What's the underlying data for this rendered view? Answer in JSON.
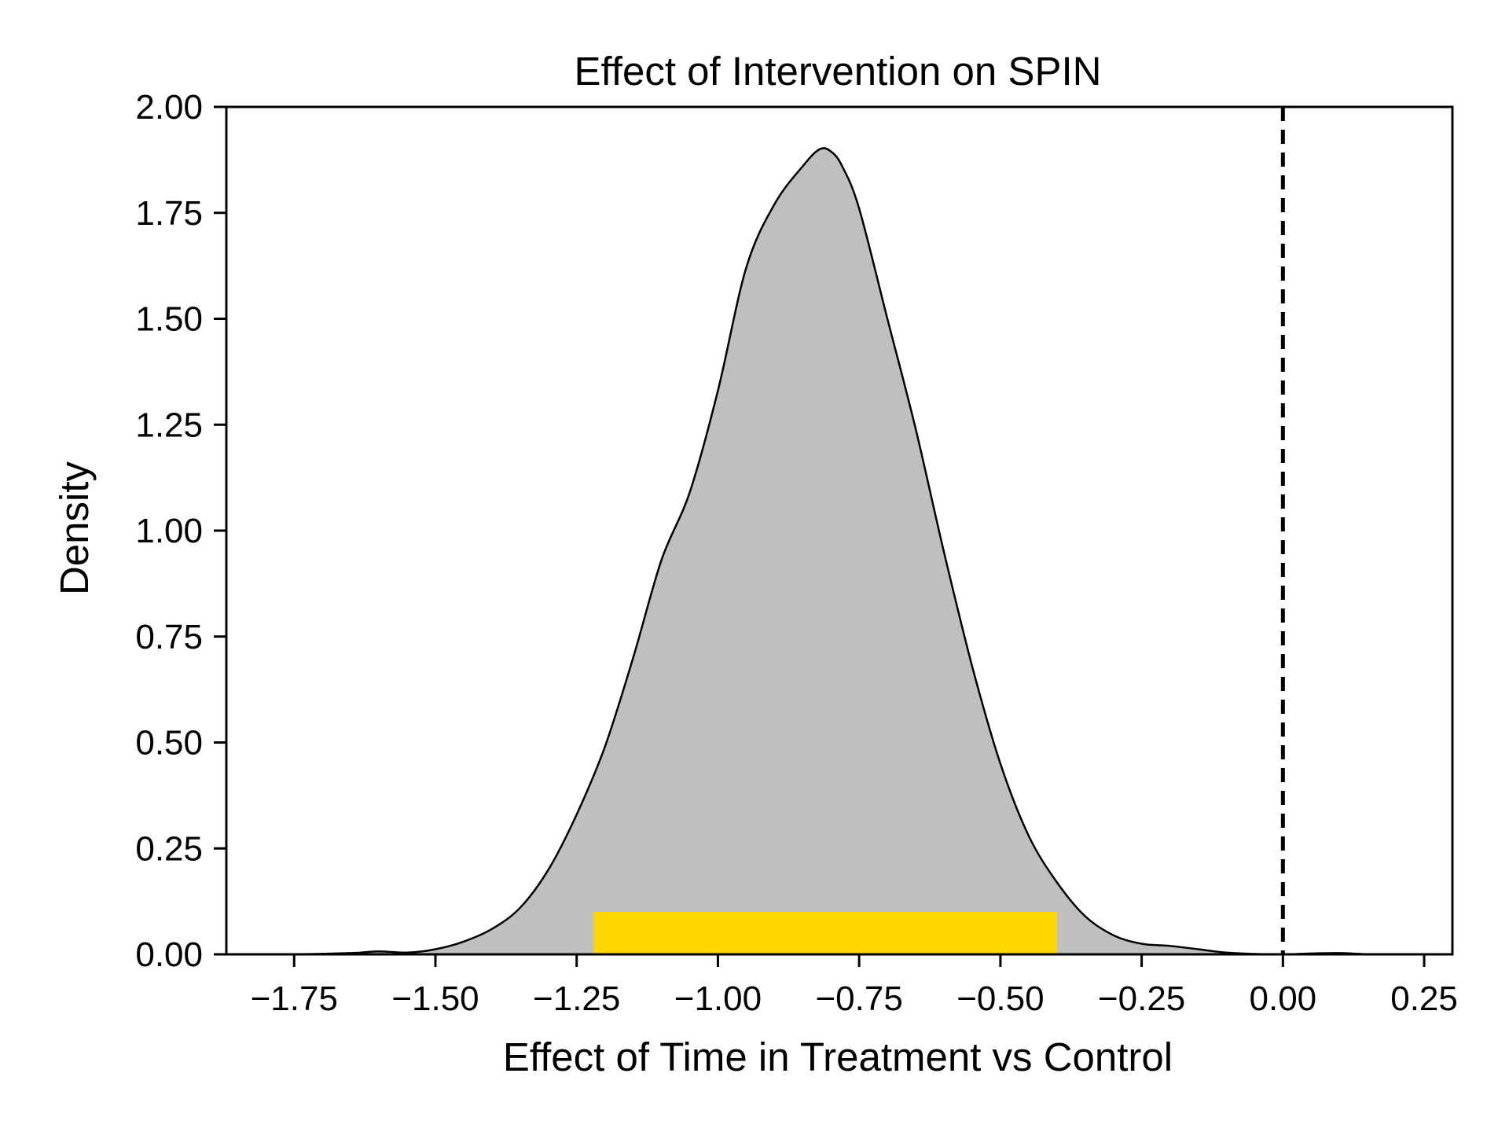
{
  "chart_data": {
    "type": "area",
    "title": "Effect of Intervention on SPIN",
    "xlabel": "Effect of Time in Treatment vs Control",
    "ylabel": "Density",
    "xlim": [
      -1.87,
      0.3
    ],
    "ylim": [
      0,
      2.0
    ],
    "xticks": [
      -1.75,
      -1.5,
      -1.25,
      -1.0,
      -0.75,
      -0.5,
      -0.25,
      0.0,
      0.25
    ],
    "xtick_labels": [
      "−1.75",
      "−1.50",
      "−1.25",
      "−1.00",
      "−0.75",
      "−0.50",
      "−0.25",
      "0.00",
      "0.25"
    ],
    "yticks": [
      0,
      0.25,
      0.5,
      0.75,
      1.0,
      1.25,
      1.5,
      1.75,
      2.0
    ],
    "ytick_labels": [
      "0.00",
      "0.25",
      "0.50",
      "0.75",
      "1.00",
      "1.25",
      "1.50",
      "1.75",
      "2.00"
    ],
    "grid": false,
    "density_curve": {
      "fill_color": "#bfbfbf",
      "line_color": "#000000",
      "x": [
        -1.75,
        -1.65,
        -1.6,
        -1.55,
        -1.5,
        -1.45,
        -1.4,
        -1.35,
        -1.3,
        -1.25,
        -1.2,
        -1.15,
        -1.1,
        -1.05,
        -1.0,
        -0.95,
        -0.9,
        -0.85,
        -0.82,
        -0.8,
        -0.78,
        -0.75,
        -0.7,
        -0.65,
        -0.6,
        -0.55,
        -0.5,
        -0.45,
        -0.4,
        -0.35,
        -0.3,
        -0.25,
        -0.2,
        -0.15,
        -0.1,
        -0.05,
        0.0,
        0.05,
        0.1,
        0.15
      ],
      "y": [
        0.0,
        0.003,
        0.007,
        0.004,
        0.012,
        0.03,
        0.06,
        0.11,
        0.2,
        0.33,
        0.49,
        0.7,
        0.93,
        1.09,
        1.33,
        1.62,
        1.77,
        1.86,
        1.9,
        1.895,
        1.86,
        1.76,
        1.5,
        1.24,
        0.95,
        0.68,
        0.45,
        0.28,
        0.17,
        0.09,
        0.045,
        0.025,
        0.02,
        0.012,
        0.004,
        0.001,
        0.0,
        0.002,
        0.003,
        0.0
      ]
    },
    "credible_interval": {
      "color": "#ffd700",
      "low": -1.22,
      "high": -0.4,
      "height": 0.1
    },
    "reference_line": {
      "x": 0.0,
      "style": "dashed",
      "color": "#000000"
    }
  }
}
